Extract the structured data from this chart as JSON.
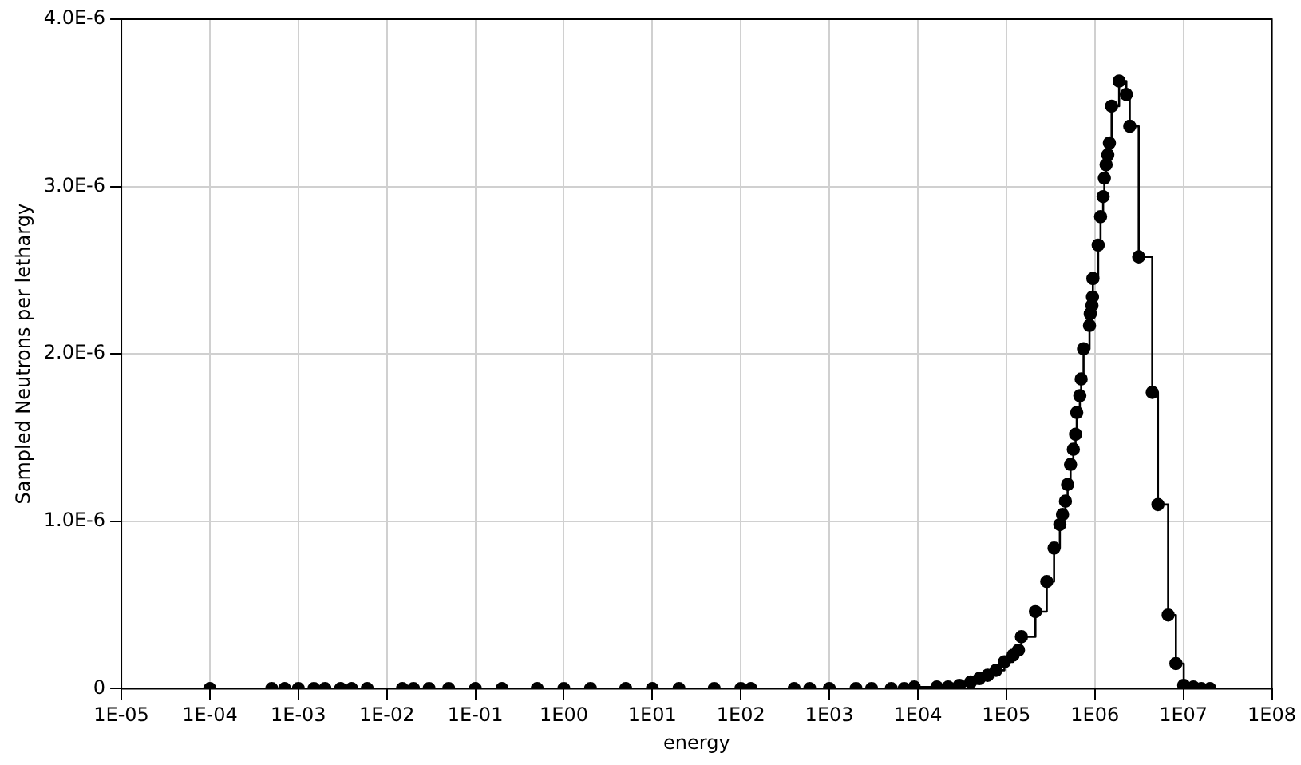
{
  "chart_data": {
    "type": "step",
    "xlabel": "energy",
    "ylabel": "Sampled Neutrons per lethargy",
    "log": "x",
    "grid": true,
    "marker": "circle",
    "line_style": "solid",
    "legend": false,
    "xlim": [
      1e-05,
      100000000.0
    ],
    "xticks": [
      {
        "value": 1e-05,
        "label": "1E-05"
      },
      {
        "value": 0.0001,
        "label": "1E-04"
      },
      {
        "value": 0.001,
        "label": "1E-03"
      },
      {
        "value": 0.01,
        "label": "1E-02"
      },
      {
        "value": 0.1,
        "label": "1E-01"
      },
      {
        "value": 1,
        "label": "1E00"
      },
      {
        "value": 10,
        "label": "1E01"
      },
      {
        "value": 100,
        "label": "1E02"
      },
      {
        "value": 1000,
        "label": "1E03"
      },
      {
        "value": 10000,
        "label": "1E04"
      },
      {
        "value": 100000,
        "label": "1E05"
      },
      {
        "value": 1000000,
        "label": "1E06"
      },
      {
        "value": 10000000,
        "label": "1E07"
      },
      {
        "value": 100000000,
        "label": "1E08"
      }
    ],
    "ylim": [
      0,
      4e-06
    ],
    "yticks": [
      0,
      {
        "value": 1e-06,
        "label": "1.0E-6"
      },
      {
        "value": 2e-06,
        "label": "2.0E-6"
      },
      {
        "value": 3e-06,
        "label": "3.0E-6"
      },
      {
        "value": 4e-06,
        "label": "4.0E-6"
      }
    ],
    "series": [
      {
        "color": "#000000",
        "x": [
          0.0001,
          0.0005,
          0.0007,
          0.001,
          0.0015,
          0.002,
          0.003,
          0.004,
          0.006,
          0.015,
          0.02,
          0.03,
          0.05,
          0.1,
          0.2,
          0.5,
          1,
          2,
          5,
          10,
          20,
          50,
          100,
          130,
          400,
          600,
          1000,
          2000,
          3000,
          5000,
          7000,
          9100,
          16400.0,
          22000.0,
          29400.0,
          39500.0,
          49300.0,
          61400.0,
          76500.0,
          95000.0,
          119000.0,
          137000.0,
          148000.0,
          213000.0,
          286000.0,
          346000.0,
          402000.0,
          431000.0,
          465000.0,
          492000.0,
          531000.0,
          571000.0,
          605000.0,
          624000.0,
          676000.0,
          700000.0,
          745000.0,
          870000.0,
          887000.0,
          927000.0,
          940000.0,
          950000.0,
          1090000.0,
          1160000.0,
          1240000.0,
          1280000.0,
          1340000.0,
          1400000.0,
          1460000.0,
          1545000.0,
          1880000.0,
          2270000.0,
          2480000.0,
          3130000.0,
          4450000.0,
          5160000.0,
          6730000.0,
          8240000.0,
          10100000.0,
          13000000.0,
          16000000.0,
          20000000.0
        ],
        "values": [
          0,
          0,
          0,
          0,
          0,
          0,
          0,
          0,
          0,
          0,
          0,
          0,
          0,
          0,
          0,
          0,
          0,
          0,
          0,
          0,
          0,
          0,
          0,
          0,
          0,
          0,
          0,
          0,
          0,
          0,
          0,
          1e-08,
          1e-08,
          1e-08,
          2e-08,
          4e-08,
          6e-08,
          8e-08,
          1.1e-07,
          1.6e-07,
          2e-07,
          2.3e-07,
          3.1e-07,
          4.6e-07,
          6.4e-07,
          8.4e-07,
          9.8e-07,
          1.04e-06,
          1.12e-06,
          1.22e-06,
          1.34e-06,
          1.43e-06,
          1.52e-06,
          1.65e-06,
          1.75e-06,
          1.85e-06,
          2.03e-06,
          2.17e-06,
          2.24e-06,
          2.29e-06,
          2.34e-06,
          2.45e-06,
          2.65e-06,
          2.82e-06,
          2.94e-06,
          3.05e-06,
          3.13e-06,
          3.19e-06,
          3.26e-06,
          3.48e-06,
          3.63e-06,
          3.55e-06,
          3.36e-06,
          2.58e-06,
          1.77e-06,
          1.1e-06,
          4.4e-07,
          1.5e-07,
          2e-08,
          1e-08,
          0,
          0
        ]
      }
    ]
  }
}
